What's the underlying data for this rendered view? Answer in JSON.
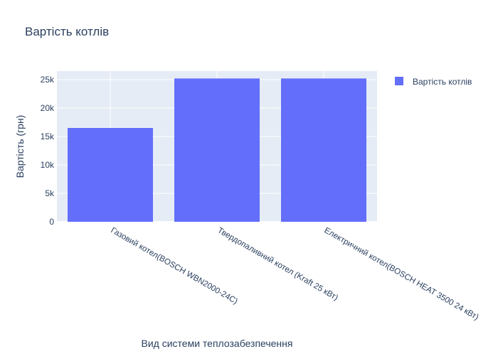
{
  "chart_data": {
    "type": "bar",
    "title": "Вартість котлів",
    "xlabel": "Вид системи теплозабезпечення",
    "ylabel": "Вартість (грн)",
    "categories": [
      "Газовий котел(BOSCH WBN2000-24C)",
      "Твердопаливний котел (Kraft 25 кВт)",
      "Електричний котел(BOSCH HEAT 3500 24 кВт)"
    ],
    "series": [
      {
        "name": "Вартість котлів",
        "values": [
          16500,
          25200,
          25200
        ],
        "color": "#636efa"
      }
    ],
    "ylim": [
      0,
      26500
    ],
    "yticks": [
      0,
      5000,
      10000,
      15000,
      20000,
      25000
    ],
    "ytick_labels": [
      "0",
      "5k",
      "10k",
      "15k",
      "20k",
      "25k"
    ],
    "grid": true,
    "legend_position": "top-right",
    "plot_background": "#e5ecf6"
  }
}
